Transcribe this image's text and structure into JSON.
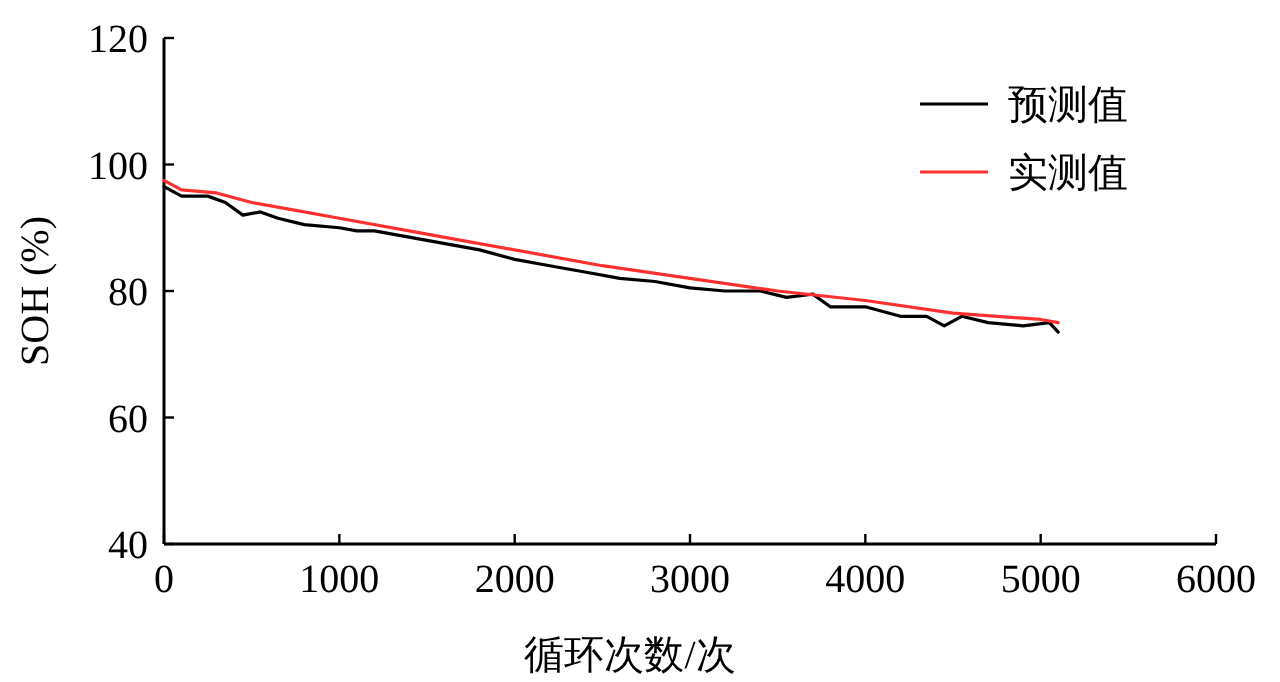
{
  "chart_data": {
    "type": "line",
    "xlabel": "循环次数/次",
    "ylabel": "SOH (%)",
    "xlim": [
      0,
      6000
    ],
    "xticks": [
      0,
      1000,
      2000,
      3000,
      4000,
      5000,
      6000
    ],
    "ylim": [
      40,
      120
    ],
    "yticks": [
      40,
      60,
      80,
      100,
      120
    ],
    "legend": "top right",
    "grid": false,
    "marker": "none",
    "line_style": "solid",
    "series": [
      {
        "name": "预测值",
        "color": "#000000",
        "x": [
          0,
          100,
          250,
          350,
          450,
          550,
          650,
          800,
          1000,
          1100,
          1200,
          1500,
          1800,
          2000,
          2200,
          2400,
          2600,
          2800,
          3000,
          3200,
          3400,
          3550,
          3700,
          3800,
          4000,
          4200,
          4350,
          4450,
          4550,
          4700,
          4900,
          5050,
          5100
        ],
        "values": [
          96.5,
          95,
          95,
          94,
          92,
          92.5,
          91.5,
          90.5,
          90,
          89.5,
          89.5,
          88,
          86.5,
          85,
          84,
          83,
          82,
          81.5,
          80.5,
          80,
          80,
          79,
          79.5,
          77.5,
          77.5,
          76,
          76,
          74.5,
          76,
          75,
          74.5,
          75,
          73.5
        ]
      },
      {
        "name": "实测值",
        "color": "#ff3030",
        "x": [
          0,
          100,
          300,
          500,
          800,
          1000,
          1500,
          2000,
          2500,
          3000,
          3500,
          4000,
          4500,
          5000,
          5100
        ],
        "values": [
          97.5,
          96,
          95.5,
          94,
          92.5,
          91.5,
          89,
          86.5,
          84,
          82,
          80,
          78.5,
          76.5,
          75.5,
          75
        ]
      }
    ]
  }
}
